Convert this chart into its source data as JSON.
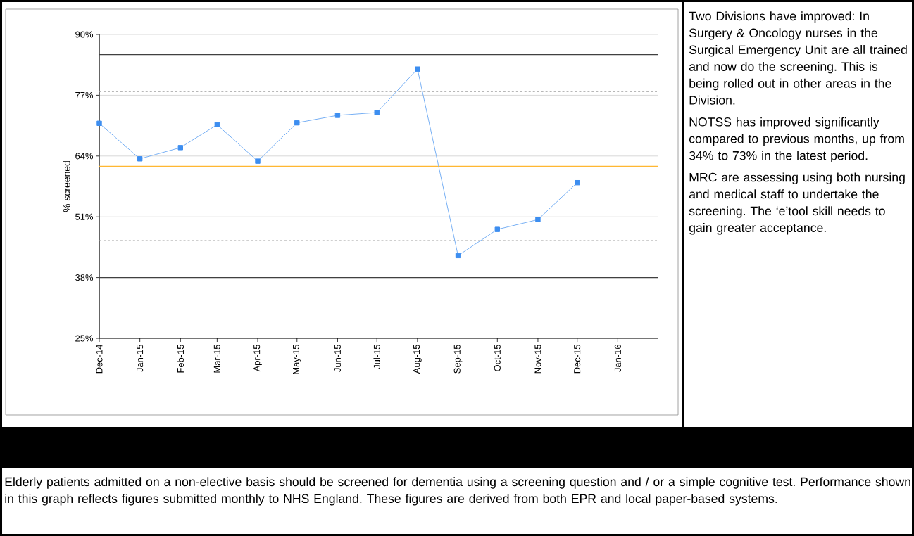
{
  "chart_data": {
    "type": "line",
    "ylabel": "% screened",
    "x": [
      "2014-12",
      "2015-01",
      "2015-02",
      "2015-03",
      "2015-04",
      "2015-05",
      "2015-06",
      "2015-07",
      "2015-08",
      "2015-09",
      "2015-10",
      "2015-11",
      "2015-12"
    ],
    "series": [
      {
        "color": "#3d8ef0",
        "values": [
          71.0,
          63.4,
          65.8,
          70.7,
          62.9,
          71.1,
          72.7,
          73.3,
          82.6,
          42.7,
          48.3,
          50.4,
          58.3
        ]
      }
    ],
    "xlim": [
      "2014-12",
      "2016-02"
    ],
    "xticks": [
      {
        "value": "2014-12",
        "label": "Dec-14"
      },
      {
        "value": "2015-01",
        "label": "Jan-15"
      },
      {
        "value": "2015-02",
        "label": "Feb-15"
      },
      {
        "value": "2015-03",
        "label": "Mar-15"
      },
      {
        "value": "2015-04",
        "label": "Apr-15"
      },
      {
        "value": "2015-05",
        "label": "May-15"
      },
      {
        "value": "2015-06",
        "label": "Jun-15"
      },
      {
        "value": "2015-07",
        "label": "Jul-15"
      },
      {
        "value": "2015-08",
        "label": "Aug-15"
      },
      {
        "value": "2015-09",
        "label": "Sep-15"
      },
      {
        "value": "2015-10",
        "label": "Oct-15"
      },
      {
        "value": "2015-11",
        "label": "Nov-15"
      },
      {
        "value": "2015-12",
        "label": "Dec-15"
      },
      {
        "value": "2016-01",
        "label": "Jan-16"
      }
    ],
    "ylim": [
      25,
      90
    ],
    "yticks": [
      {
        "value": 25,
        "label": "25%"
      },
      {
        "value": 38,
        "label": "38%"
      },
      {
        "value": 51,
        "label": "51%"
      },
      {
        "value": 64,
        "label": "64%"
      },
      {
        "value": 77,
        "label": "77%"
      },
      {
        "value": 90,
        "label": "90%"
      }
    ],
    "ref_lines": [
      {
        "axis": "y",
        "value": 85.7,
        "color": "#404040",
        "line_style": "solid"
      },
      {
        "axis": "y",
        "value": 77.8,
        "color": "#a0a0a0",
        "line_style": "dashed"
      },
      {
        "axis": "y",
        "value": 61.8,
        "color": "#ffb732",
        "line_style": "solid"
      },
      {
        "axis": "y",
        "value": 45.9,
        "color": "#a0a0a0",
        "line_style": "dashed"
      },
      {
        "axis": "y",
        "value": 38.0,
        "color": "#404040",
        "line_style": "solid"
      }
    ],
    "grid": "y",
    "marker": "square",
    "line_style": "solid",
    "annotations": [
      "Two Divisions have improved: In Surgery & Oncology nurses in the Surgical Emergency Unit are all trained and now do the screening. This is being rolled out in other areas in the Division.",
      "NOTSS has improved significantly compared to previous months, up from 34% to 73% in the latest period.",
      "MRC are assessing using both nursing and medical staff to undertake the screening. The ‘e’tool skill needs to gain greater acceptance.",
      "Elderly patients admitted on a non-elective basis should be screened for dementia using a screening question and / or a simple cognitive test. Performance shown in this graph reflects figures submitted monthly to NHS England. These figures are derived from both EPR and local paper-based systems."
    ]
  }
}
